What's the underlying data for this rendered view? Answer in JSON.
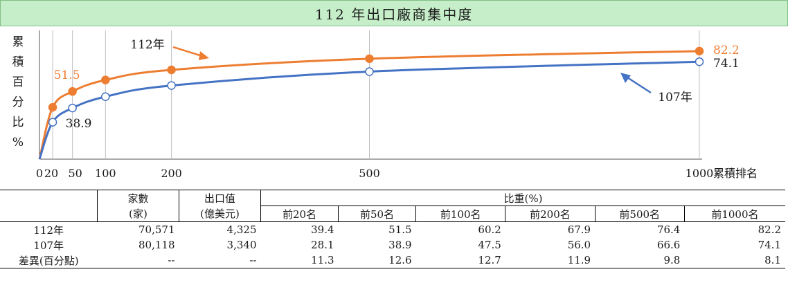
{
  "title": "112 年出口廠商集中度",
  "chart_data": {
    "type": "line",
    "ylabel": "累積百分比%",
    "xlabel": "累積排名",
    "x_ticks": [
      "0",
      "20",
      "50",
      "100",
      "200",
      "500",
      "1000"
    ],
    "x": [
      20,
      50,
      100,
      200,
      500,
      1000
    ],
    "xlim": [
      0,
      1000
    ],
    "ylim": [
      0,
      100
    ],
    "series": [
      {
        "name": "112年",
        "color": "#ed7d31",
        "marker": "filled",
        "values": [
          39.4,
          51.5,
          60.2,
          67.9,
          76.4,
          82.2
        ]
      },
      {
        "name": "107年",
        "color": "#4472c4",
        "marker": "hollow",
        "values": [
          28.1,
          38.9,
          47.5,
          56.0,
          66.6,
          74.1
        ]
      }
    ],
    "data_labels": [
      {
        "series": 0,
        "index": 1,
        "text": "51.5"
      },
      {
        "series": 0,
        "index": 5,
        "text": "82.2"
      },
      {
        "series": 1,
        "index": 1,
        "text": "38.9"
      },
      {
        "series": 1,
        "index": 5,
        "text": "74.1"
      }
    ]
  },
  "table": {
    "col_headers": {
      "firms": [
        "家數",
        "(家)"
      ],
      "export": [
        "出口值",
        "(億美元)"
      ],
      "share": "比重(%)",
      "share_cols": [
        "前20名",
        "前50名",
        "前100名",
        "前200名",
        "前500名",
        "前1000名"
      ]
    },
    "rows": [
      {
        "label": "112年",
        "firms": "70,571",
        "export": "4,325",
        "shares": [
          "39.4",
          "51.5",
          "60.2",
          "67.9",
          "76.4",
          "82.2"
        ]
      },
      {
        "label": "107年",
        "firms": "80,118",
        "export": "3,340",
        "shares": [
          "28.1",
          "38.9",
          "47.5",
          "56.0",
          "66.6",
          "74.1"
        ]
      },
      {
        "label": "差異(百分點)",
        "firms": "--",
        "export": "--",
        "shares": [
          "11.3",
          "12.6",
          "12.7",
          "11.9",
          "9.8",
          "8.1"
        ]
      }
    ]
  }
}
